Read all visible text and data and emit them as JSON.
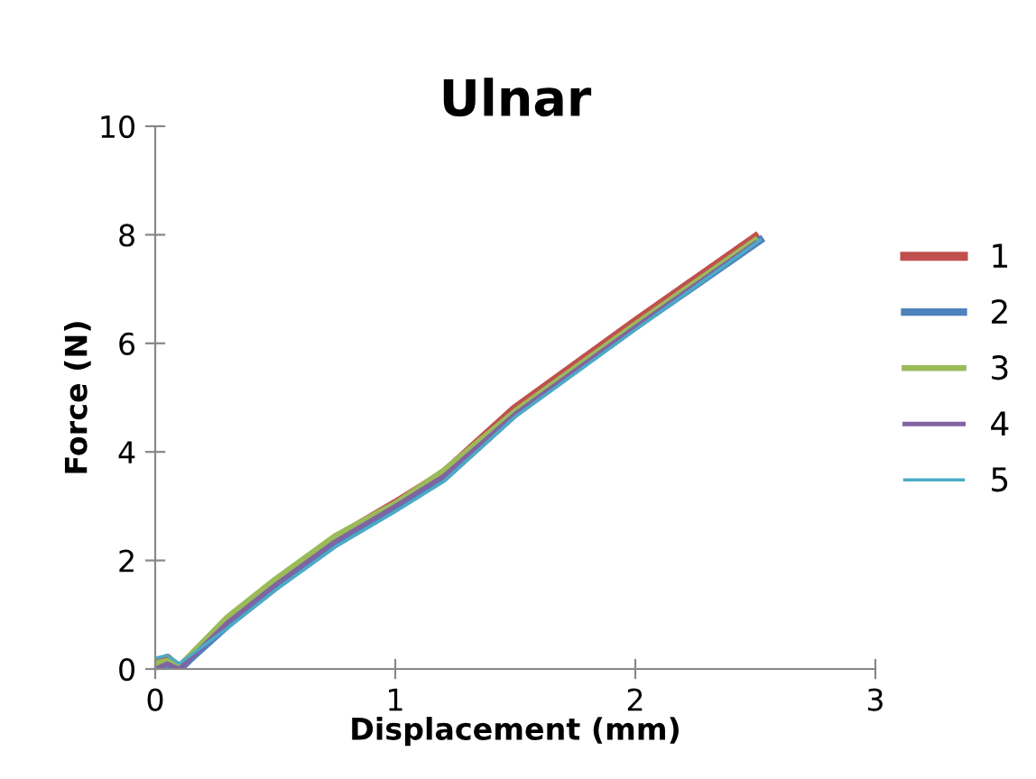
{
  "chart_data": {
    "type": "line",
    "title": "Ulnar",
    "xlabel": "Displacement (mm)",
    "ylabel": "Force (N)",
    "xlim": [
      0,
      3
    ],
    "xticks": [
      0,
      1,
      2,
      3
    ],
    "ylim": [
      0,
      10
    ],
    "yticks": [
      0,
      2,
      4,
      6,
      8,
      10
    ],
    "grid": false,
    "legend": "right",
    "marker": "none",
    "line_style": "solid",
    "series": [
      {
        "name": "1",
        "color": "#c0504d",
        "x": [
          0,
          0.05,
          0.1,
          0.3,
          0.5,
          0.75,
          1.0,
          1.2,
          1.5,
          2.0,
          2.5
        ],
        "values": [
          0.1,
          0.2,
          0.0,
          0.9,
          1.6,
          2.4,
          3.05,
          3.6,
          4.8,
          6.4,
          7.95
        ]
      },
      {
        "name": "2",
        "color": "#4f81bd",
        "x": [
          0,
          0.05,
          0.1,
          0.3,
          0.5,
          0.75,
          1.0,
          1.2,
          1.5,
          2.0,
          2.52
        ],
        "values": [
          0.0,
          0.1,
          0.0,
          0.8,
          1.5,
          2.3,
          2.95,
          3.5,
          4.7,
          6.3,
          7.9
        ]
      },
      {
        "name": "3",
        "color": "#9bbb59",
        "x": [
          0,
          0.05,
          0.1,
          0.3,
          0.5,
          0.75,
          1.0,
          1.2,
          1.5,
          2.0,
          2.5
        ],
        "values": [
          0.1,
          0.15,
          0.05,
          0.95,
          1.65,
          2.45,
          3.05,
          3.65,
          4.75,
          6.35,
          7.9
        ]
      },
      {
        "name": "4",
        "color": "#8064a2",
        "x": [
          0,
          0.05,
          0.1,
          0.3,
          0.5,
          0.75,
          1.0,
          1.2,
          1.5,
          2.0,
          2.5
        ],
        "values": [
          0.0,
          0.1,
          0.0,
          0.85,
          1.55,
          2.35,
          3.0,
          3.55,
          4.7,
          6.3,
          7.85
        ]
      },
      {
        "name": "5",
        "color": "#4bacc6",
        "x": [
          0,
          0.05,
          0.1,
          0.3,
          0.5,
          0.75,
          1.0,
          1.2,
          1.5,
          2.0,
          2.52
        ],
        "values": [
          0.2,
          0.25,
          0.1,
          0.75,
          1.45,
          2.25,
          2.9,
          3.45,
          4.65,
          6.25,
          7.9
        ]
      }
    ]
  }
}
